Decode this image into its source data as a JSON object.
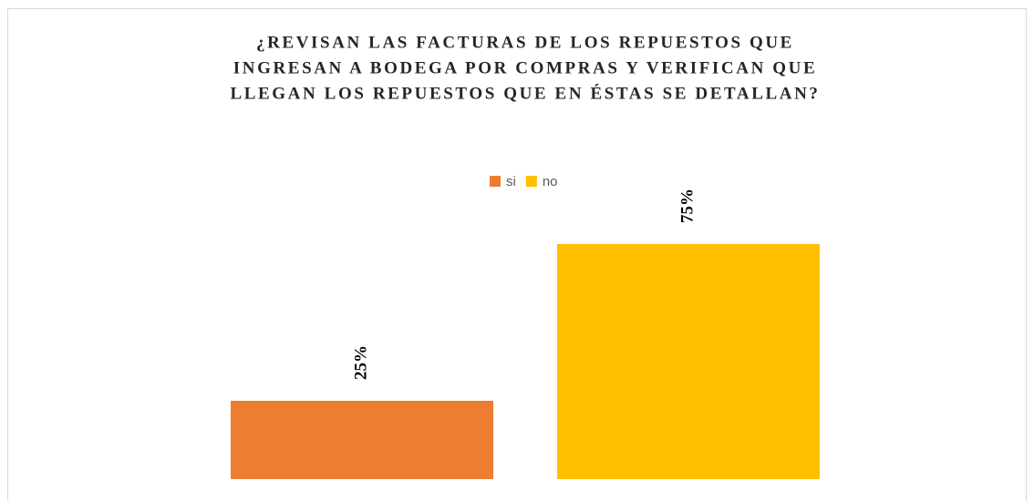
{
  "chart_data": {
    "type": "bar",
    "title": [
      "¿REVISAN LAS FACTURAS DE LOS REPUESTOS QUE",
      "INGRESAN A BODEGA POR COMPRAS Y VERIFICAN QUE",
      "LLEGAN LOS REPUESTOS QUE EN ÉSTAS SE DETALLAN?"
    ],
    "categories": [
      null
    ],
    "series": [
      {
        "name": "si",
        "color": "#ed7d31",
        "values": [
          25
        ],
        "value_labels": [
          "25%"
        ]
      },
      {
        "name": "no",
        "color": "#ffc000",
        "values": [
          75
        ],
        "value_labels": [
          "75%"
        ]
      }
    ],
    "legend": "top"
  }
}
